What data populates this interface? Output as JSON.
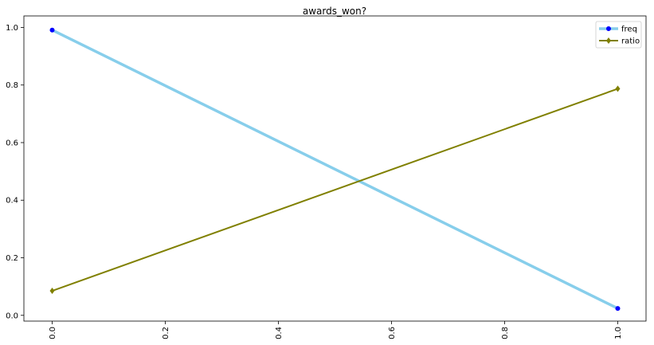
{
  "chart_data": {
    "type": "line",
    "title": "awards_won?",
    "xlabel": "",
    "ylabel": "",
    "xlim": [
      -0.05,
      1.05
    ],
    "ylim": [
      -0.02,
      1.04
    ],
    "x_ticks": [
      "0.0",
      "0.2",
      "0.4",
      "0.6",
      "0.8",
      "1.0"
    ],
    "y_ticks": [
      "0.0",
      "0.2",
      "0.4",
      "0.6",
      "0.8",
      "1.0"
    ],
    "x_tick_rotation": 90,
    "grid": false,
    "legend_position": "top-right",
    "series": [
      {
        "name": "freq",
        "x": [
          0.0,
          1.0
        ],
        "y": [
          0.991,
          0.024
        ],
        "line_color": "#87ceeb",
        "marker_color": "#0000ff",
        "marker": "circle"
      },
      {
        "name": "ratio",
        "x": [
          0.0,
          1.0
        ],
        "y": [
          0.085,
          0.787
        ],
        "line_color": "#808000",
        "marker_color": "#808000",
        "marker": "diamond"
      }
    ]
  }
}
